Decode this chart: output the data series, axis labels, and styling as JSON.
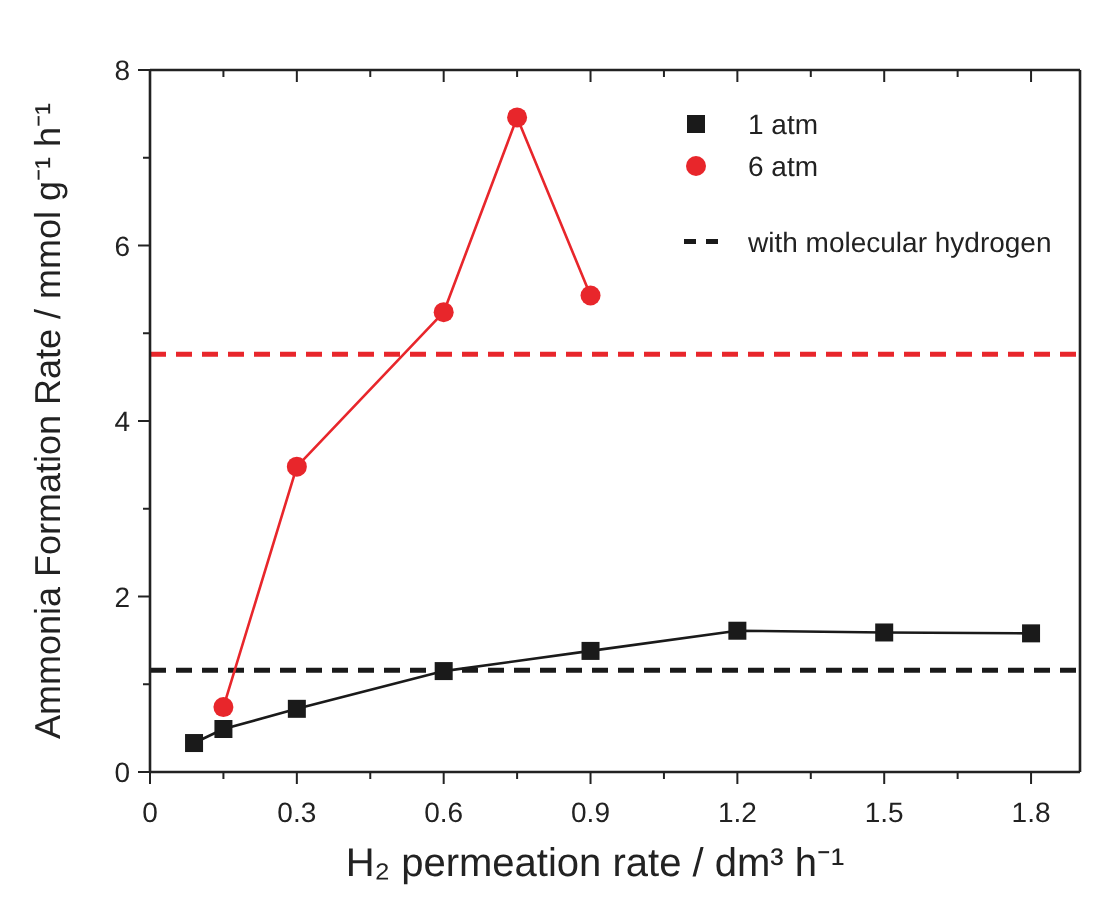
{
  "chart_data": {
    "type": "line",
    "xlabel": "H₂ permeation rate / dm³ h⁻¹",
    "ylabel": "Ammonia Formation Rate / mmol g⁻¹ h⁻¹",
    "xlim": [
      0,
      1.9
    ],
    "ylim": [
      0,
      8
    ],
    "xticks": [
      0,
      {
        "value": 0.15,
        "label": null
      },
      0.3,
      {
        "value": 0.45,
        "label": null
      },
      0.6,
      {
        "value": 0.75,
        "label": null
      },
      0.9,
      {
        "value": 1.05,
        "label": null
      },
      1.2,
      {
        "value": 1.35,
        "label": null
      },
      1.5,
      {
        "value": 1.65,
        "label": null
      },
      1.8
    ],
    "yticks": [
      0,
      {
        "value": 1,
        "label": null
      },
      2,
      {
        "value": 3,
        "label": null
      },
      4,
      {
        "value": 5,
        "label": null
      },
      6,
      {
        "value": 7,
        "label": null
      },
      8
    ],
    "series": [
      {
        "name": "1 atm",
        "color": "#1a1a1a",
        "marker": "square",
        "x": [
          0.09,
          0.15,
          0.3,
          0.6,
          0.9,
          1.2,
          1.5,
          1.8
        ],
        "values": [
          0.33,
          0.49,
          0.72,
          1.15,
          1.38,
          1.61,
          1.59,
          1.58
        ]
      },
      {
        "name": "6 atm",
        "color": "#e8262b",
        "marker": "circle",
        "x": [
          0.15,
          0.3,
          0.6,
          0.75,
          0.9
        ],
        "values": [
          0.74,
          3.48,
          5.24,
          7.46,
          5.43
        ]
      }
    ],
    "ref_lines": [
      {
        "axis": "y",
        "value": 4.76,
        "color": "#e8262b",
        "line_style": "dashed"
      },
      {
        "axis": "y",
        "value": 1.16,
        "color": "#1a1a1a",
        "line_style": "dashed",
        "label": "with molecular hydrogen"
      }
    ],
    "legend": "top right",
    "grid": false
  }
}
